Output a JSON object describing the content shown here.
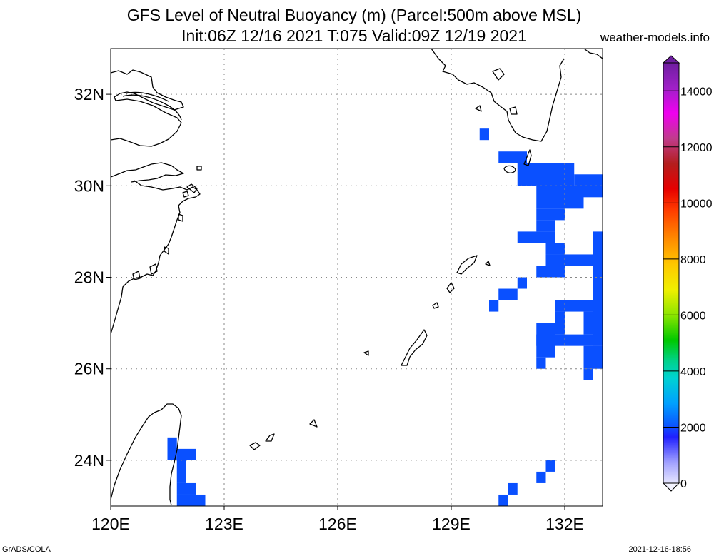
{
  "title_line1": "GFS Level of Neutral Buoyancy (m) (Parcel:500m above MSL)",
  "title_line2": "Init:06Z 12/16 2021 T:075 Valid:09Z 12/19 2021",
  "site": "weather-models.info",
  "footer_left": "GrADS/COLA",
  "footer_right": "2021-12-16-18:56",
  "chart_data": {
    "type": "heatmap",
    "title": "GFS Level of Neutral Buoyancy (m) (Parcel:500m above MSL)",
    "xlabel": "",
    "ylabel": "",
    "units": "m",
    "xlim": [
      120,
      133
    ],
    "ylim": [
      23,
      33
    ],
    "x_ticks": [
      {
        "value": 120,
        "label": "120E"
      },
      {
        "value": 123,
        "label": "123E"
      },
      {
        "value": 126,
        "label": "126E"
      },
      {
        "value": 129,
        "label": "129E"
      },
      {
        "value": 132,
        "label": "132E"
      }
    ],
    "y_ticks": [
      {
        "value": 24,
        "label": "24N"
      },
      {
        "value": 26,
        "label": "26N"
      },
      {
        "value": 28,
        "label": "28N"
      },
      {
        "value": 30,
        "label": "30N"
      },
      {
        "value": 32,
        "label": "32N"
      }
    ],
    "grid": true,
    "colorbar": {
      "min": 0,
      "max": 15000,
      "tick_labels": [
        "0",
        "2000",
        "4000",
        "6000",
        "8000",
        "10000",
        "12000",
        "14000"
      ],
      "tick_values": [
        0,
        2000,
        4000,
        6000,
        8000,
        10000,
        12000,
        14000
      ]
    },
    "cells": [
      {
        "lon0": 129.75,
        "lon1": 130.0,
        "lat0": 31.0,
        "lat1": 31.25,
        "value": 1500
      },
      {
        "lon0": 130.25,
        "lon1": 131.0,
        "lat0": 30.5,
        "lat1": 30.75,
        "value": 1500
      },
      {
        "lon0": 130.75,
        "lon1": 132.25,
        "lat0": 30.0,
        "lat1": 30.5,
        "value": 1500
      },
      {
        "lon0": 132.25,
        "lon1": 133.0,
        "lat0": 29.75,
        "lat1": 30.25,
        "value": 1600
      },
      {
        "lon0": 131.25,
        "lon1": 132.5,
        "lat0": 29.5,
        "lat1": 30.0,
        "value": 1500
      },
      {
        "lon0": 131.25,
        "lon1": 132.0,
        "lat0": 29.25,
        "lat1": 29.5,
        "value": 1500
      },
      {
        "lon0": 131.25,
        "lon1": 131.75,
        "lat0": 29.0,
        "lat1": 29.25,
        "value": 1500
      },
      {
        "lon0": 130.75,
        "lon1": 131.75,
        "lat0": 28.75,
        "lat1": 29.0,
        "value": 1500
      },
      {
        "lon0": 131.5,
        "lon1": 132.0,
        "lat0": 28.5,
        "lat1": 28.75,
        "value": 1500
      },
      {
        "lon0": 132.75,
        "lon1": 133.0,
        "lat0": 28.0,
        "lat1": 29.0,
        "value": 1500
      },
      {
        "lon0": 131.5,
        "lon1": 133.0,
        "lat0": 28.25,
        "lat1": 28.5,
        "value": 1500
      },
      {
        "lon0": 131.25,
        "lon1": 132.0,
        "lat0": 28.0,
        "lat1": 28.25,
        "value": 1500
      },
      {
        "lon0": 130.75,
        "lon1": 131.0,
        "lat0": 27.75,
        "lat1": 28.0,
        "value": 1500
      },
      {
        "lon0": 130.25,
        "lon1": 130.75,
        "lat0": 27.5,
        "lat1": 27.75,
        "value": 1500
      },
      {
        "lon0": 130.0,
        "lon1": 130.25,
        "lat0": 27.25,
        "lat1": 27.5,
        "value": 1500
      },
      {
        "lon0": 132.75,
        "lon1": 133.0,
        "lat0": 26.5,
        "lat1": 28.0,
        "value": 1500
      },
      {
        "lon0": 131.75,
        "lon1": 133.0,
        "lat0": 27.25,
        "lat1": 27.5,
        "value": 1500
      },
      {
        "lon0": 131.75,
        "lon1": 132.0,
        "lat0": 26.75,
        "lat1": 27.25,
        "value": 1500
      },
      {
        "lon0": 132.5,
        "lon1": 132.75,
        "lat0": 26.75,
        "lat1": 27.25,
        "value": 1500
      },
      {
        "lon0": 131.25,
        "lon1": 131.75,
        "lat0": 26.25,
        "lat1": 27.0,
        "value": 1500
      },
      {
        "lon0": 131.25,
        "lon1": 133.0,
        "lat0": 26.5,
        "lat1": 26.75,
        "value": 1500
      },
      {
        "lon0": 131.25,
        "lon1": 131.5,
        "lat0": 26.0,
        "lat1": 26.25,
        "value": 1500
      },
      {
        "lon0": 132.5,
        "lon1": 133.0,
        "lat0": 26.0,
        "lat1": 26.5,
        "value": 1500
      },
      {
        "lon0": 132.5,
        "lon1": 132.75,
        "lat0": 25.75,
        "lat1": 26.0,
        "value": 1500
      },
      {
        "lon0": 131.5,
        "lon1": 131.75,
        "lat0": 23.75,
        "lat1": 24.0,
        "value": 1500
      },
      {
        "lon0": 131.25,
        "lon1": 131.5,
        "lat0": 23.5,
        "lat1": 23.75,
        "value": 1500
      },
      {
        "lon0": 130.5,
        "lon1": 130.75,
        "lat0": 23.25,
        "lat1": 23.5,
        "value": 1500
      },
      {
        "lon0": 130.25,
        "lon1": 130.5,
        "lat0": 23.0,
        "lat1": 23.25,
        "value": 1500
      },
      {
        "lon0": 121.5,
        "lon1": 121.75,
        "lat0": 24.0,
        "lat1": 24.5,
        "value": 1500
      },
      {
        "lon0": 121.75,
        "lon1": 122.25,
        "lat0": 24.0,
        "lat1": 24.25,
        "value": 1500
      },
      {
        "lon0": 121.75,
        "lon1": 122.0,
        "lat0": 23.5,
        "lat1": 24.0,
        "value": 1500
      },
      {
        "lon0": 121.75,
        "lon1": 122.25,
        "lat0": 23.25,
        "lat1": 23.5,
        "value": 1500
      },
      {
        "lon0": 121.75,
        "lon1": 122.5,
        "lat0": 23.0,
        "lat1": 23.25,
        "value": 1500
      }
    ]
  }
}
